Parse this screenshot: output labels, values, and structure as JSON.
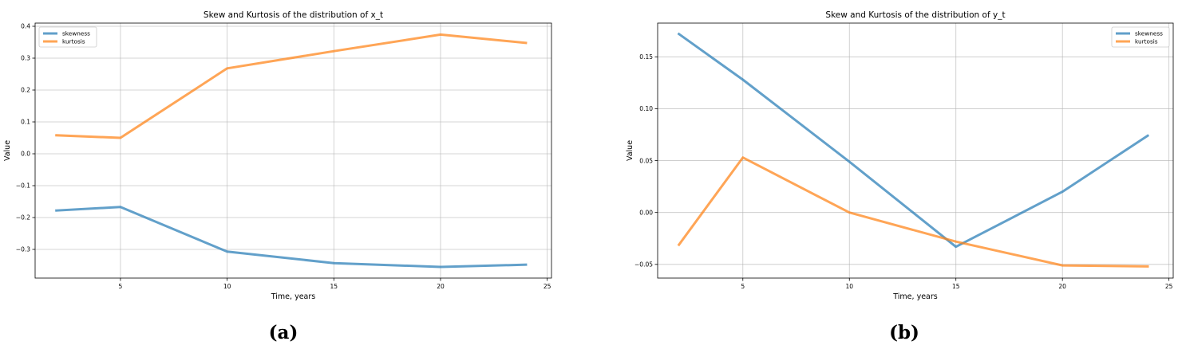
{
  "chart_data": [
    {
      "type": "line",
      "title": "Skew and Kurtosis of the distribution of x_t",
      "xlabel": "Time, years",
      "ylabel": "Value",
      "x": [
        2,
        5,
        10,
        15,
        20,
        24
      ],
      "xlim": [
        1,
        25.2
      ],
      "ylim": [
        -0.39,
        0.41
      ],
      "xticks": [
        5,
        10,
        15,
        20,
        25
      ],
      "yticks": [
        -0.3,
        -0.2,
        -0.1,
        0.0,
        0.1,
        0.2,
        0.3,
        0.4
      ],
      "ytick_labels": [
        "−0.3",
        "−0.2",
        "−0.1",
        "0.0",
        "0.1",
        "0.2",
        "0.3",
        "0.4"
      ],
      "grid": true,
      "legend_position": "upper-left",
      "series": [
        {
          "name": "skewness",
          "color": "#1f77b4",
          "values": [
            -0.178,
            -0.167,
            -0.307,
            -0.343,
            -0.355,
            -0.348
          ]
        },
        {
          "name": "kurtosis",
          "color": "#ff7f0e",
          "values": [
            0.058,
            0.05,
            0.268,
            0.322,
            0.374,
            0.348
          ]
        }
      ]
    },
    {
      "type": "line",
      "title": "Skew and Kurtosis of the distribution of y_t",
      "xlabel": "Time, years",
      "ylabel": "Value",
      "x": [
        2,
        5,
        10,
        15,
        20,
        24
      ],
      "xlim": [
        1,
        25.2
      ],
      "ylim": [
        -0.0632,
        0.1825
      ],
      "xticks": [
        5,
        10,
        15,
        20,
        25
      ],
      "yticks": [
        -0.05,
        0.0,
        0.05,
        0.1,
        0.15
      ],
      "ytick_labels": [
        "−0.05",
        "0.00",
        "0.05",
        "0.10",
        "0.15"
      ],
      "grid": true,
      "legend_position": "upper-right",
      "series": [
        {
          "name": "skewness",
          "color": "#1f77b4",
          "values": [
            0.172,
            0.128,
            0.049,
            -0.033,
            0.02,
            0.074
          ]
        },
        {
          "name": "kurtosis",
          "color": "#ff7f0e",
          "values": [
            -0.031,
            0.053,
            0.0,
            -0.028,
            -0.051,
            -0.052
          ]
        }
      ]
    }
  ],
  "captions": {
    "a": "(a)",
    "b": "(b)"
  }
}
